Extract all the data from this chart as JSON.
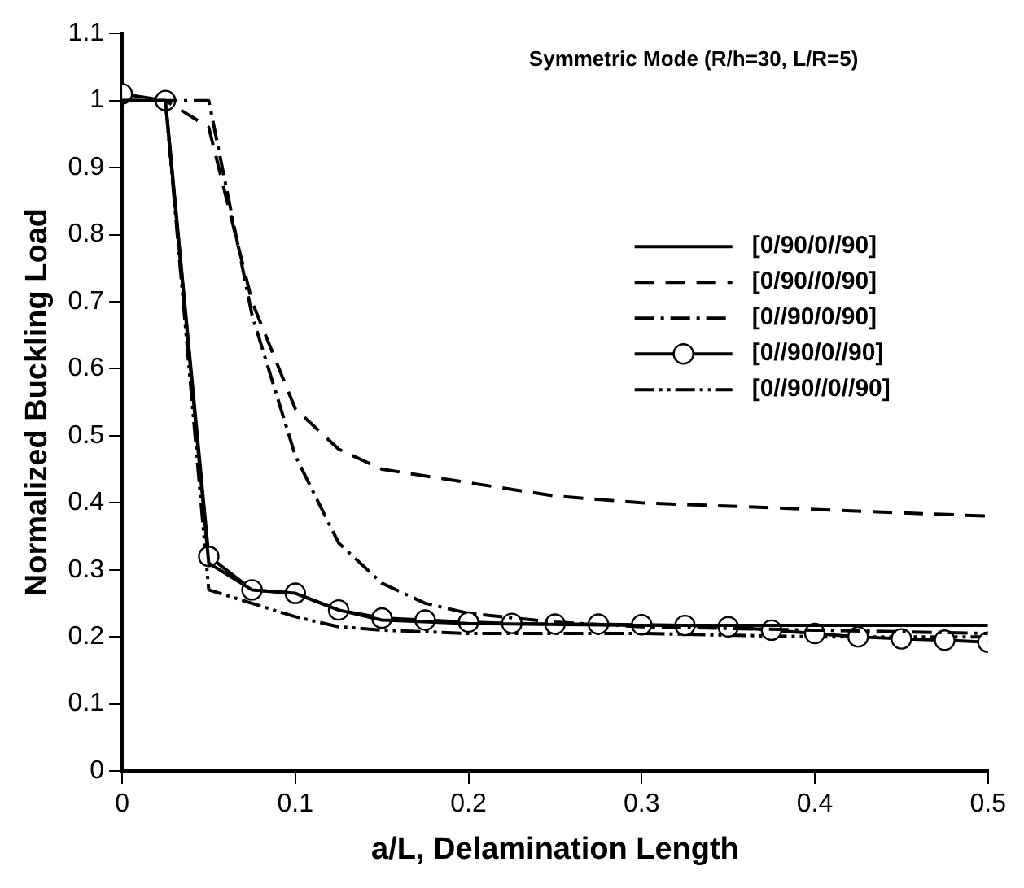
{
  "chart_data": {
    "type": "line",
    "title": "Symmetric Mode (R/h=30, L/R=5)",
    "xlabel": "a/L, Delamination Length",
    "ylabel": "Normalized Buckling Load",
    "xlim": [
      0,
      0.5
    ],
    "xticks": [
      0,
      0.1,
      0.2,
      0.3,
      0.4,
      0.5
    ],
    "ylim": [
      0,
      1.1
    ],
    "yticks": [
      0,
      0.1,
      0.2,
      0.3,
      0.4,
      0.5,
      0.6,
      0.7,
      0.8,
      0.9,
      1,
      1.1
    ],
    "grid": false,
    "legend": "top right",
    "series": [
      {
        "name": "[0/90/0//90]",
        "color": "#000000",
        "line_style": "solid",
        "marker": "none",
        "x": [
          0,
          0.025,
          0.05,
          0.075,
          0.1,
          0.125,
          0.15,
          0.2,
          0.3,
          0.5
        ],
        "values": [
          1.0,
          1.0,
          0.31,
          0.27,
          0.265,
          0.24,
          0.225,
          0.22,
          0.217,
          0.217
        ]
      },
      {
        "name": "[0/90//0/90]",
        "color": "#000000",
        "line_style": "dashed",
        "marker": "none",
        "x": [
          0,
          0.025,
          0.05,
          0.075,
          0.1,
          0.125,
          0.15,
          0.2,
          0.25,
          0.3,
          0.4,
          0.5
        ],
        "values": [
          1.0,
          1.0,
          0.96,
          0.7,
          0.54,
          0.48,
          0.45,
          0.43,
          0.41,
          0.4,
          0.39,
          0.38
        ]
      },
      {
        "name": "[0//90/0/90]",
        "color": "#000000",
        "line_style": "dashdot",
        "marker": "none",
        "x": [
          0,
          0.025,
          0.05,
          0.075,
          0.1,
          0.125,
          0.15,
          0.175,
          0.2,
          0.25,
          0.3,
          0.4,
          0.5
        ],
        "values": [
          1.0,
          1.0,
          1.0,
          0.68,
          0.47,
          0.34,
          0.28,
          0.25,
          0.235,
          0.222,
          0.215,
          0.21,
          0.205
        ]
      },
      {
        "name": "[0//90/0//90]",
        "color": "#000000",
        "line_style": "solid",
        "marker": "circle",
        "x": [
          0,
          0.025,
          0.05,
          0.075,
          0.1,
          0.125,
          0.15,
          0.175,
          0.2,
          0.225,
          0.25,
          0.275,
          0.3,
          0.325,
          0.35,
          0.375,
          0.4,
          0.425,
          0.45,
          0.475,
          0.5
        ],
        "values": [
          1.01,
          1.0,
          0.32,
          0.27,
          0.265,
          0.24,
          0.228,
          0.225,
          0.222,
          0.22,
          0.219,
          0.219,
          0.218,
          0.217,
          0.215,
          0.21,
          0.205,
          0.2,
          0.197,
          0.195,
          0.192
        ]
      },
      {
        "name": "[0//90//0//90]",
        "color": "#000000",
        "line_style": "dashdotdot",
        "marker": "none",
        "x": [
          0,
          0.025,
          0.05,
          0.075,
          0.1,
          0.125,
          0.15,
          0.2,
          0.3,
          0.4,
          0.5
        ],
        "values": [
          1.0,
          1.0,
          0.27,
          0.25,
          0.23,
          0.215,
          0.21,
          0.205,
          0.205,
          0.2,
          0.2
        ]
      }
    ]
  }
}
